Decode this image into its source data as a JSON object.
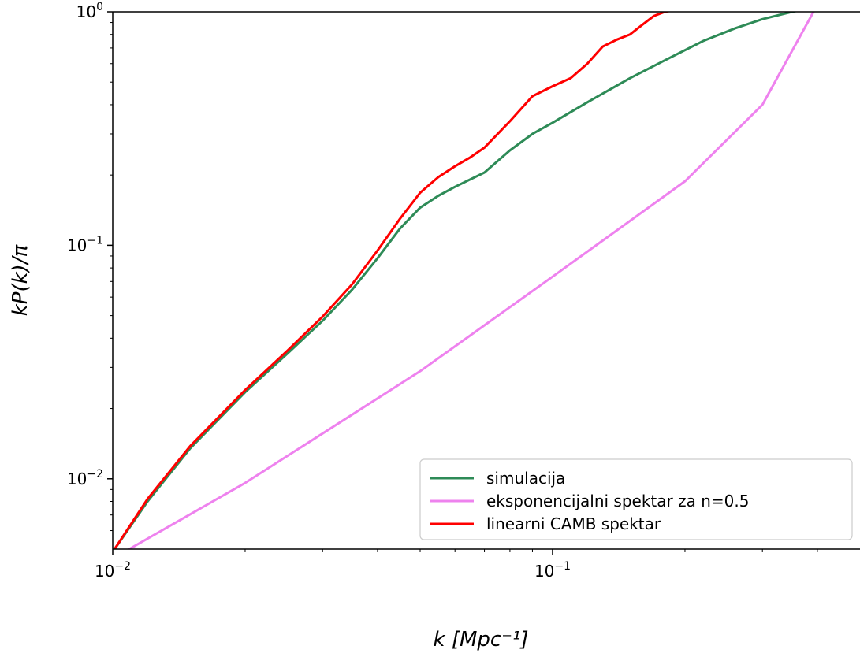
{
  "chart_data": {
    "type": "line",
    "xscale": "log",
    "yscale": "log",
    "xlim": [
      0.01,
      0.5
    ],
    "ylim": [
      0.005,
      1
    ],
    "grid": false,
    "legend_position": "lower-right",
    "xlabel": "k [Mpc⁻¹]",
    "ylabel": "kP(k)/π",
    "x_ticks": [
      {
        "value": 0.01,
        "base": "10",
        "exp": "−2"
      },
      {
        "value": 0.1,
        "base": "10",
        "exp": "−1"
      }
    ],
    "y_ticks": [
      {
        "value": 0.01,
        "base": "10",
        "exp": "−2"
      },
      {
        "value": 0.1,
        "base": "10",
        "exp": "−1"
      },
      {
        "value": 1,
        "base": "10",
        "exp": "0"
      }
    ],
    "series": [
      {
        "name": "simulacija",
        "color": "#2e8b57",
        "x": [
          0.0101,
          0.012,
          0.015,
          0.02,
          0.025,
          0.03,
          0.035,
          0.04,
          0.045,
          0.05,
          0.055,
          0.06,
          0.07,
          0.08,
          0.09,
          0.1,
          0.12,
          0.15,
          0.18,
          0.22,
          0.26,
          0.3,
          0.35,
          0.38
        ],
        "y": [
          0.005,
          0.008,
          0.0135,
          0.0235,
          0.0345,
          0.0475,
          0.0645,
          0.088,
          0.118,
          0.145,
          0.163,
          0.178,
          0.205,
          0.255,
          0.3,
          0.335,
          0.41,
          0.52,
          0.62,
          0.75,
          0.85,
          0.93,
          1.0,
          1.03
        ]
      },
      {
        "name": "eksponencijalni spektar za n=0.5",
        "color": "#ee82ee",
        "x": [
          0.0109,
          0.02,
          0.05,
          0.1,
          0.2,
          0.3,
          0.392
        ],
        "y": [
          0.005,
          0.0096,
          0.0289,
          0.0734,
          0.188,
          0.4,
          1.0
        ]
      },
      {
        "name": "linearni CAMB spektar",
        "color": "#ff0000",
        "x": [
          0.0101,
          0.012,
          0.015,
          0.02,
          0.025,
          0.03,
          0.035,
          0.04,
          0.045,
          0.05,
          0.055,
          0.06,
          0.065,
          0.07,
          0.08,
          0.09,
          0.1,
          0.11,
          0.12,
          0.13,
          0.14,
          0.15,
          0.16,
          0.17,
          0.18,
          0.19
        ],
        "y": [
          0.005,
          0.0082,
          0.0138,
          0.024,
          0.0355,
          0.0495,
          0.068,
          0.095,
          0.13,
          0.168,
          0.196,
          0.218,
          0.238,
          0.262,
          0.34,
          0.435,
          0.48,
          0.52,
          0.6,
          0.71,
          0.76,
          0.8,
          0.88,
          0.96,
          1.0,
          1.02
        ]
      }
    ]
  }
}
